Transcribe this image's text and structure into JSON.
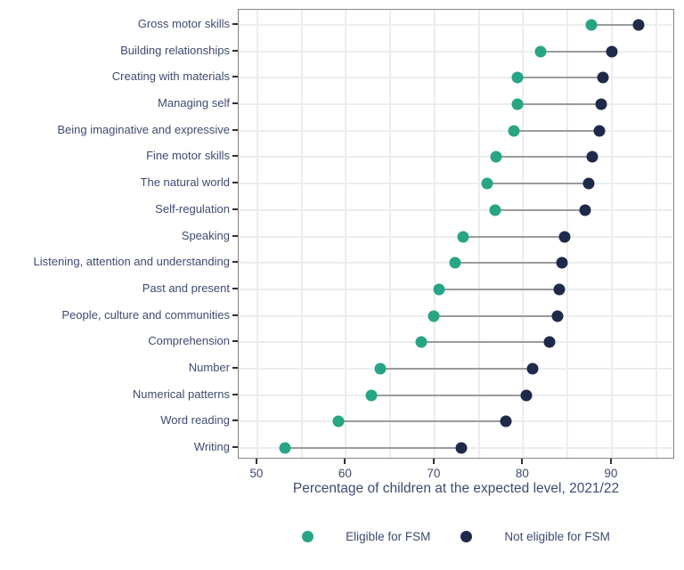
{
  "styles": {
    "background": "#ffffff",
    "text_color": "#3f4a70",
    "gridline_color": "#ebedf0",
    "connector_color": "#9b9b9b",
    "axis_border_color": "#858585",
    "tick_color": "#2f2f2f",
    "fsm_color": "#27a584",
    "not_fsm_color": "#1f2a4b"
  },
  "chart_data": {
    "type": "scatter",
    "variant": "dumbbell",
    "orientation": "horizontal",
    "title": "",
    "xlabel": "Percentage of children at the expected level, 2021/22",
    "ylabel": "",
    "xlim": [
      47.9,
      97.15
    ],
    "xticks": [
      50,
      60,
      70,
      80,
      90
    ],
    "gridline_step": 5,
    "grid": true,
    "legend_position": "bottom",
    "categories": [
      "Gross motor skills",
      "Building relationships",
      "Creating with materials",
      "Managing self",
      "Being imaginative and expressive",
      "Fine motor skills",
      "The natural world",
      "Self-regulation",
      "Speaking",
      "Listening, attention and understanding",
      "Past and present",
      "People, culture and communities",
      "Comprehension",
      "Number",
      "Numerical patterns",
      "Word reading",
      "Writing"
    ],
    "series": [
      {
        "name": "Eligible for FSM",
        "color": "#27a584",
        "values": [
          87.7,
          82.0,
          79.4,
          79.4,
          79.0,
          76.9,
          75.9,
          76.8,
          73.2,
          72.3,
          70.5,
          69.9,
          68.5,
          63.9,
          62.9,
          59.2,
          53.1
        ]
      },
      {
        "name": "Not eligible for FSM",
        "color": "#1f2a4b",
        "values": [
          93.0,
          90.0,
          89.0,
          88.8,
          88.6,
          87.8,
          87.4,
          87.0,
          84.7,
          84.4,
          84.1,
          83.9,
          83.0,
          81.1,
          80.4,
          78.1,
          73.0
        ]
      }
    ]
  }
}
